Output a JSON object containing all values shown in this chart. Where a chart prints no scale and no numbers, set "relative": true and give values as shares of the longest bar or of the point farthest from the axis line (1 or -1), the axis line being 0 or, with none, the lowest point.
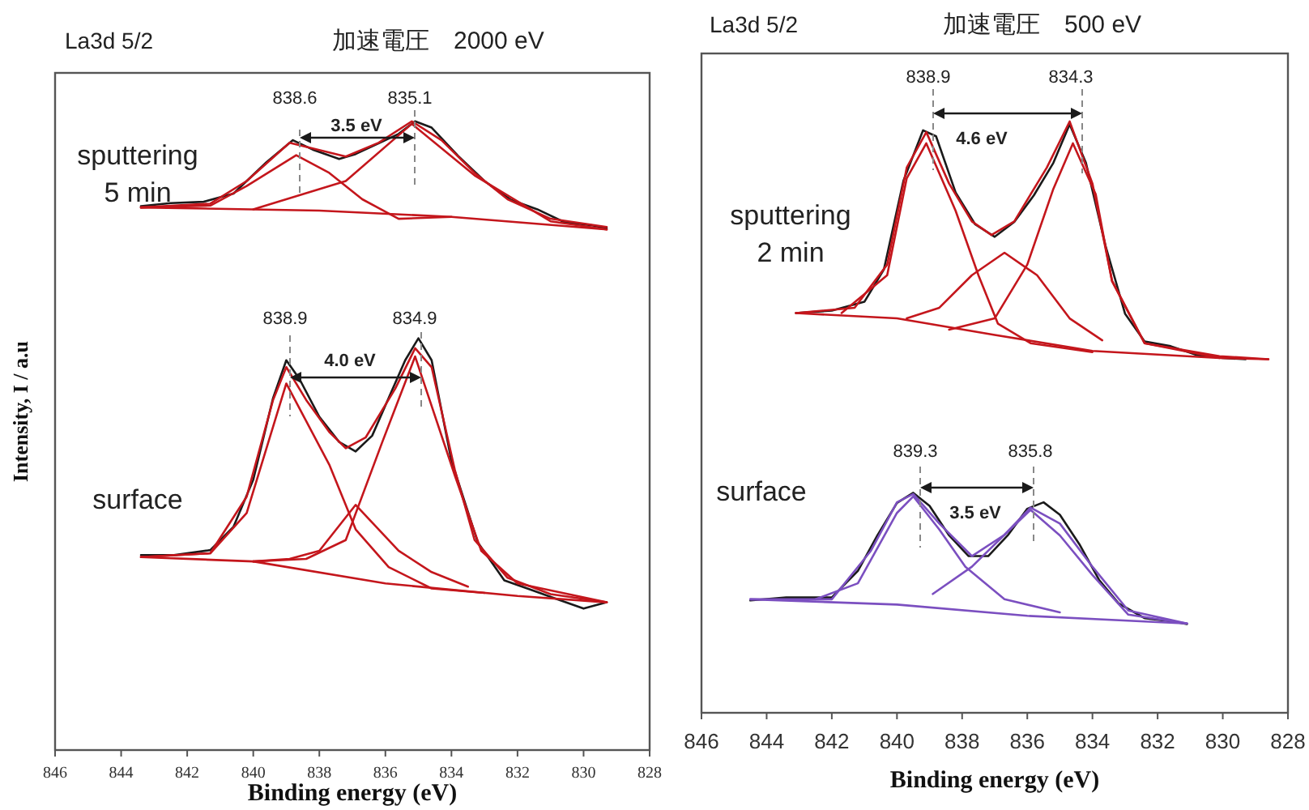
{
  "chart_data": [
    {
      "type": "line",
      "relative": true,
      "title": "La3d 5/2",
      "subtitle": "加速電圧　2000 eV",
      "xlabel": "Binding energy (eV)",
      "ylabel": "Intensity, I / a.u",
      "xlim": [
        846,
        828
      ],
      "xticks": [
        846,
        844,
        842,
        840,
        838,
        836,
        834,
        832,
        830,
        828
      ],
      "grid": false,
      "annotations": [
        "sputtering\n5 min",
        "surface",
        "838.6",
        "835.1",
        "3.5 eV",
        "838.9",
        "834.9",
        "4.0 eV"
      ],
      "series": [
        {
          "type": "line",
          "color": "#1a1a1a",
          "x": [
            843.4,
            842.5,
            841.5,
            840.6,
            839.6,
            838.8,
            838.2,
            837.4,
            836.9,
            836.2,
            835.6,
            835.1,
            834.6,
            833.8,
            833.0,
            832.2,
            831.4,
            830.6,
            829.8,
            829.3
          ],
          "values": [
            0.865,
            0.87,
            0.872,
            0.885,
            0.935,
            0.97,
            0.955,
            0.94,
            0.948,
            0.965,
            0.98,
            1.0,
            0.99,
            0.945,
            0.905,
            0.875,
            0.86,
            0.84,
            0.835,
            0.83
          ]
        },
        {
          "type": "line",
          "color": "#c4161c",
          "x": [
            843.4,
            841.3,
            840.2,
            838.9,
            837.9,
            837.2,
            836.2,
            835.2,
            834.3,
            833.3,
            832.3,
            831.0,
            829.3
          ],
          "values": [
            0.863,
            0.869,
            0.905,
            0.966,
            0.953,
            0.944,
            0.966,
            1.0,
            0.97,
            0.918,
            0.876,
            0.845,
            0.832
          ]
        },
        {
          "type": "line",
          "color": "#c4161c",
          "x": [
            843.4,
            841.3,
            840.2,
            838.7,
            837.7,
            836.7,
            835.6,
            834.0
          ],
          "values": [
            0.863,
            0.866,
            0.897,
            0.946,
            0.918,
            0.876,
            0.845,
            0.848
          ]
        },
        {
          "type": "line",
          "color": "#c4161c",
          "x": [
            840.0,
            837.2,
            835.2,
            833.3,
            831.0,
            829.3
          ],
          "values": [
            0.86,
            0.905,
            0.996,
            0.914,
            0.841,
            0.828
          ]
        },
        {
          "type": "line",
          "color": "#c4161c",
          "x": [
            843.4,
            838.0,
            834.0,
            829.3
          ],
          "values": [
            0.863,
            0.858,
            0.848,
            0.828
          ]
        },
        {
          "type": "line",
          "color": "#1a1a1a",
          "x": [
            843.4,
            842.4,
            841.3,
            840.6,
            840.0,
            839.4,
            839.0,
            838.6,
            838.0,
            837.4,
            836.9,
            836.4,
            835.9,
            835.4,
            835.0,
            834.6,
            834.0,
            833.2,
            832.4,
            831.6,
            830.8,
            830.0,
            829.3
          ],
          "values": [
            0.31,
            0.31,
            0.318,
            0.355,
            0.43,
            0.56,
            0.62,
            0.59,
            0.53,
            0.49,
            0.475,
            0.5,
            0.56,
            0.62,
            0.655,
            0.62,
            0.46,
            0.33,
            0.27,
            0.255,
            0.24,
            0.225,
            0.235
          ]
        },
        {
          "type": "line",
          "color": "#c4161c",
          "x": [
            843.4,
            841.3,
            840.2,
            839.4,
            839.0,
            838.4,
            837.7,
            837.2,
            836.6,
            835.7,
            835.1,
            834.6,
            833.9,
            833.3,
            832.3,
            831.0,
            829.3
          ],
          "values": [
            0.307,
            0.313,
            0.403,
            0.557,
            0.609,
            0.557,
            0.506,
            0.48,
            0.497,
            0.575,
            0.639,
            0.609,
            0.446,
            0.334,
            0.274,
            0.248,
            0.235
          ]
        },
        {
          "type": "line",
          "color": "#c4161c",
          "x": [
            843.4,
            841.3,
            840.2,
            839.0,
            837.7,
            836.9,
            835.9,
            834.6,
            833.0
          ],
          "values": [
            0.307,
            0.313,
            0.377,
            0.583,
            0.454,
            0.351,
            0.291,
            0.257,
            0.25
          ]
        },
        {
          "type": "line",
          "color": "#c4161c",
          "x": [
            840.0,
            838.4,
            837.2,
            836.1,
            835.1,
            833.9,
            833.1,
            832.0,
            829.3
          ],
          "values": [
            0.3,
            0.304,
            0.334,
            0.489,
            0.626,
            0.437,
            0.317,
            0.265,
            0.235
          ]
        },
        {
          "type": "line",
          "color": "#c4161c",
          "x": [
            840.0,
            838.9,
            838.0,
            836.9,
            835.6,
            834.6,
            833.5
          ],
          "values": [
            0.3,
            0.304,
            0.317,
            0.39,
            0.317,
            0.283,
            0.26
          ]
        },
        {
          "type": "line",
          "color": "#c4161c",
          "x": [
            843.4,
            840.0,
            836.0,
            832.0,
            829.3
          ],
          "values": [
            0.307,
            0.3,
            0.265,
            0.245,
            0.235
          ]
        }
      ]
    },
    {
      "type": "line",
      "relative": true,
      "title": "La3d 5/2",
      "subtitle": "加速電圧　500 eV",
      "xlabel": "Binding energy (eV)",
      "xlim": [
        846,
        828
      ],
      "xticks": [
        846,
        844,
        842,
        840,
        838,
        836,
        834,
        832,
        830,
        828
      ],
      "grid": false,
      "annotations": [
        "sputtering\n2 min",
        "surface",
        "838.9",
        "834.3",
        "4.6 eV",
        "839.3",
        "835.8",
        "3.5 eV"
      ],
      "series": [
        {
          "type": "line",
          "color": "#1a1a1a",
          "x": [
            843.1,
            842.0,
            841.0,
            840.4,
            839.8,
            839.2,
            838.8,
            838.2,
            837.6,
            837.0,
            836.4,
            835.8,
            835.2,
            834.7,
            834.2,
            833.6,
            833.0,
            832.4,
            831.6,
            830.8,
            830.0,
            829.3
          ],
          "values": [
            0.676,
            0.68,
            0.695,
            0.75,
            0.9,
            0.985,
            0.975,
            0.88,
            0.826,
            0.805,
            0.83,
            0.875,
            0.93,
            0.995,
            0.93,
            0.79,
            0.675,
            0.628,
            0.62,
            0.605,
            0.6,
            0.598
          ]
        },
        {
          "type": "line",
          "color": "#c4161c",
          "x": [
            843.1,
            841.3,
            840.3,
            839.7,
            839.1,
            838.4,
            837.7,
            837.1,
            836.4,
            835.4,
            834.7,
            834.0,
            833.4,
            832.4,
            830.1,
            828.6
          ],
          "values": [
            0.676,
            0.685,
            0.758,
            0.922,
            0.982,
            0.895,
            0.831,
            0.808,
            0.831,
            0.922,
            1.0,
            0.895,
            0.731,
            0.625,
            0.603,
            0.598
          ]
        },
        {
          "type": "line",
          "color": "#c4161c",
          "x": [
            841.7,
            840.3,
            839.7,
            839.1,
            838.2,
            837.5,
            836.9,
            835.9,
            834.0
          ],
          "values": [
            0.676,
            0.74,
            0.904,
            0.963,
            0.849,
            0.74,
            0.658,
            0.625,
            0.61
          ]
        },
        {
          "type": "line",
          "color": "#c4161c",
          "x": [
            838.4,
            837.0,
            836.0,
            835.2,
            834.6,
            833.9,
            833.4,
            832.4,
            830.1
          ],
          "values": [
            0.648,
            0.667,
            0.758,
            0.886,
            0.963,
            0.877,
            0.73,
            0.625,
            0.6
          ]
        },
        {
          "type": "line",
          "color": "#c4161c",
          "x": [
            839.7,
            838.7,
            837.7,
            836.7,
            835.7,
            834.7,
            833.7
          ],
          "values": [
            0.667,
            0.685,
            0.74,
            0.778,
            0.74,
            0.667,
            0.63
          ]
        },
        {
          "type": "line",
          "color": "#c4161c",
          "x": [
            843.1,
            840.0,
            837.0,
            834.0,
            830.1,
            828.6
          ],
          "values": [
            0.676,
            0.667,
            0.639,
            0.612,
            0.6,
            0.598
          ]
        },
        {
          "type": "line",
          "color": "#1a1a1a",
          "x": [
            844.5,
            843.4,
            842.0,
            841.2,
            840.6,
            840.0,
            839.5,
            839.0,
            838.4,
            837.8,
            837.2,
            836.6,
            836.0,
            835.5,
            835.0,
            834.4,
            833.8,
            833.2,
            832.4,
            831.6,
            831.1
          ],
          "values": [
            0.19,
            0.195,
            0.195,
            0.24,
            0.3,
            0.355,
            0.372,
            0.35,
            0.3,
            0.265,
            0.265,
            0.3,
            0.345,
            0.356,
            0.335,
            0.285,
            0.225,
            0.185,
            0.16,
            0.155,
            0.15
          ]
        },
        {
          "type": "line",
          "color": "#7b4fc0",
          "x": [
            844.5,
            842.0,
            840.8,
            840.0,
            839.5,
            838.7,
            837.7,
            836.7,
            835.9,
            835.0,
            834.0,
            832.9,
            831.1
          ],
          "values": [
            0.192,
            0.192,
            0.274,
            0.356,
            0.37,
            0.32,
            0.265,
            0.301,
            0.347,
            0.32,
            0.247,
            0.173,
            0.151
          ]
        },
        {
          "type": "line",
          "color": "#7b4fc0",
          "x": [
            842.5,
            841.2,
            840.0,
            839.5,
            838.7,
            837.9,
            836.7,
            835.0
          ],
          "values": [
            0.192,
            0.219,
            0.338,
            0.366,
            0.31,
            0.247,
            0.192,
            0.17
          ]
        },
        {
          "type": "line",
          "color": "#7b4fc0",
          "x": [
            838.9,
            837.7,
            836.7,
            835.9,
            835.0,
            834.0,
            832.9,
            831.1
          ],
          "values": [
            0.201,
            0.247,
            0.301,
            0.343,
            0.3,
            0.233,
            0.166,
            0.151
          ]
        },
        {
          "type": "line",
          "color": "#7b4fc0",
          "x": [
            844.5,
            840.0,
            836.0,
            831.1
          ],
          "values": [
            0.192,
            0.183,
            0.164,
            0.151
          ]
        }
      ]
    }
  ]
}
